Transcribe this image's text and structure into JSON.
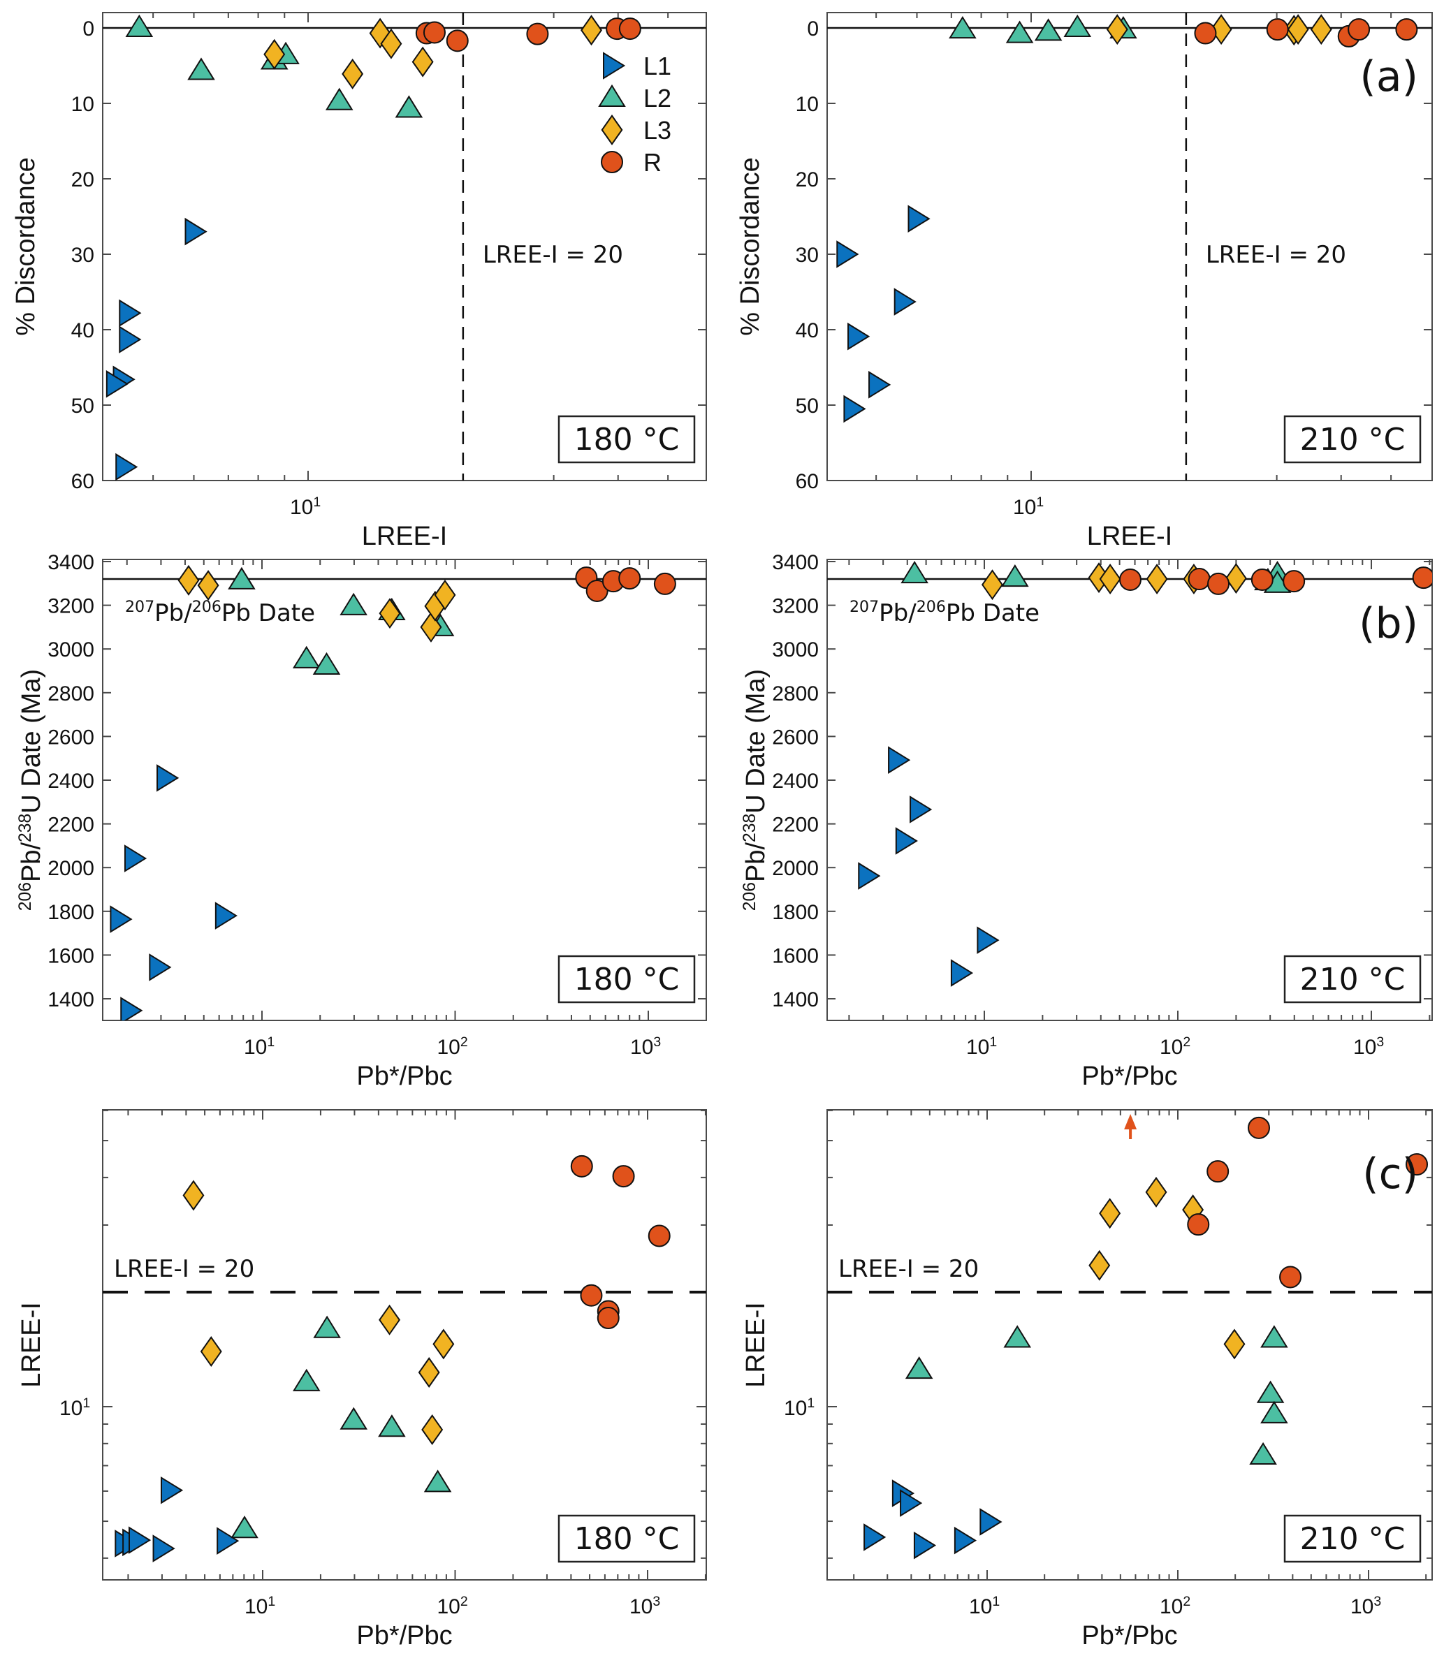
{
  "series_styles": {
    "L1": {
      "label": "L1",
      "marker": "triangle-right",
      "color": "#0b72bf"
    },
    "L2": {
      "label": "L2",
      "marker": "triangle-up",
      "color": "#4cbfa2"
    },
    "L3": {
      "label": "L3",
      "marker": "diamond",
      "color": "#f1b322"
    },
    "R": {
      "label": "R",
      "marker": "circle",
      "color": "#e0521b"
    }
  },
  "chart_data": [
    {
      "id": "a-180",
      "type": "scatter",
      "panel_label": "",
      "temperature_label": "180 °C",
      "xlabel": "LREE-I",
      "ylabel": "% Discordance",
      "xscale": "log",
      "xlim": [
        4,
        60
      ],
      "ylim": [
        60,
        0
      ],
      "y_reversed": true,
      "xticks_major": [
        {
          "value": 10,
          "label": "10",
          "exp": "1"
        }
      ],
      "yticks": [
        0,
        10,
        20,
        30,
        40,
        50,
        60
      ],
      "hline": {
        "value": 0,
        "style": "solid"
      },
      "vline": {
        "value": 20,
        "style": "dashed",
        "label": "LREE-I = 20"
      },
      "legend": {
        "placement": "top-right",
        "entries": [
          "L1",
          "L2",
          "L3",
          "R"
        ]
      },
      "series": [
        {
          "name": "L1",
          "points": [
            [
              6.0,
              27.0
            ],
            [
              4.47,
              37.8
            ],
            [
              4.47,
              41.3
            ],
            [
              4.35,
              46.6
            ],
            [
              4.22,
              47.2
            ],
            [
              4.4,
              58.2
            ]
          ]
        },
        {
          "name": "L2",
          "points": [
            [
              4.7,
              0
            ],
            [
              6.2,
              5.7
            ],
            [
              8.6,
              4.3
            ],
            [
              9.05,
              3.6
            ],
            [
              11.5,
              9.7
            ],
            [
              15.7,
              10.7
            ]
          ]
        },
        {
          "name": "L3",
          "points": [
            [
              8.6,
              3.5
            ],
            [
              12.2,
              6.1
            ],
            [
              13.8,
              0.7
            ],
            [
              14.5,
              2.1
            ],
            [
              16.7,
              4.5
            ],
            [
              35.5,
              0.3
            ]
          ]
        },
        {
          "name": "R",
          "points": [
            [
              17.0,
              0.7
            ],
            [
              17.6,
              0.6
            ],
            [
              19.5,
              1.7
            ],
            [
              27.9,
              0.8
            ],
            [
              39.8,
              0.1
            ],
            [
              42.2,
              0.1
            ]
          ]
        }
      ]
    },
    {
      "id": "a-210",
      "type": "scatter",
      "panel_label": "(a)",
      "temperature_label": "210 °C",
      "xlabel": "LREE-I",
      "ylabel": "% Discordance",
      "xscale": "log",
      "xlim": [
        4,
        60
      ],
      "ylim": [
        60,
        0
      ],
      "y_reversed": true,
      "xticks_major": [
        {
          "value": 10,
          "label": "10",
          "exp": "1"
        }
      ],
      "yticks": [
        0,
        10,
        20,
        30,
        40,
        50,
        60
      ],
      "hline": {
        "value": 0,
        "style": "solid"
      },
      "vline": {
        "value": 20,
        "style": "dashed",
        "label": "LREE-I = 20"
      },
      "series": [
        {
          "name": "L1",
          "points": [
            [
              4.36,
              30.0
            ],
            [
              6.0,
              25.3
            ],
            [
              5.64,
              36.3
            ],
            [
              4.58,
              40.9
            ],
            [
              5.03,
              47.3
            ],
            [
              4.5,
              50.5
            ]
          ]
        },
        {
          "name": "L2",
          "points": [
            [
              7.36,
              0.2
            ],
            [
              9.5,
              0.8
            ],
            [
              10.8,
              0.5
            ],
            [
              12.3,
              0
            ],
            [
              15.1,
              0.2
            ]
          ]
        },
        {
          "name": "L3",
          "points": [
            [
              14.7,
              0.2
            ],
            [
              23.4,
              0.2
            ],
            [
              32.4,
              0.3
            ],
            [
              33.0,
              0.2
            ],
            [
              36.6,
              0.2
            ]
          ]
        },
        {
          "name": "R",
          "points": [
            [
              21.8,
              0.7
            ],
            [
              30.1,
              0.2
            ],
            [
              41.4,
              1.1
            ],
            [
              43.3,
              0.2
            ],
            [
              53.6,
              0.2
            ]
          ]
        }
      ]
    },
    {
      "id": "b-180",
      "type": "scatter",
      "panel_label": "",
      "temperature_label": "180 °C",
      "xlabel": "Pb*/Pbc",
      "ylabel": "206Pb/238U Date (Ma)",
      "ylabel_parts": [
        {
          "sup": "206"
        },
        {
          "text": "Pb/"
        },
        {
          "sup": "238"
        },
        {
          "text": "U Date (Ma)"
        }
      ],
      "xscale": "log",
      "xlim": [
        1.5,
        2000
      ],
      "ylim": [
        1300,
        3410
      ],
      "xticks_major": [
        {
          "value": 10,
          "label": "10",
          "exp": "1"
        },
        {
          "value": 100,
          "label": "10",
          "exp": "2"
        },
        {
          "value": 1000,
          "label": "10",
          "exp": "3"
        }
      ],
      "yticks": [
        1400,
        1600,
        1800,
        2000,
        2200,
        2400,
        2600,
        2800,
        3000,
        3200,
        3400
      ],
      "hline": {
        "value": 3320,
        "style": "solid",
        "label_parts": [
          {
            "sup": "207"
          },
          {
            "text": "Pb/"
          },
          {
            "sup": "206"
          },
          {
            "text": "Pb Date"
          }
        ]
      },
      "series": [
        {
          "name": "L1",
          "points": [
            [
              3.17,
              2410
            ],
            [
              2.16,
              2042
            ],
            [
              1.82,
              1764
            ],
            [
              6.37,
              1780
            ],
            [
              2.9,
              1544
            ],
            [
              2.06,
              1346
            ]
          ]
        },
        {
          "name": "L2",
          "points": [
            [
              7.85,
              3314
            ],
            [
              17.0,
              2953
            ],
            [
              21.6,
              2924
            ],
            [
              29.8,
              3196
            ],
            [
              47.0,
              3173
            ],
            [
              84,
              3100
            ]
          ]
        },
        {
          "name": "L3",
          "points": [
            [
              4.17,
              3314
            ],
            [
              5.27,
              3291
            ],
            [
              45.9,
              3163
            ],
            [
              75,
              3100
            ],
            [
              78.8,
              3196
            ],
            [
              88.6,
              3247
            ]
          ]
        },
        {
          "name": "R",
          "points": [
            [
              478,
              3326
            ],
            [
              543,
              3266
            ],
            [
              659,
              3310
            ],
            [
              800,
              3323
            ],
            [
              1220,
              3298
            ]
          ]
        }
      ]
    },
    {
      "id": "b-210",
      "type": "scatter",
      "panel_label": "(b)",
      "temperature_label": "210 °C",
      "xlabel": "Pb*/Pbc",
      "ylabel": "206Pb/238U Date (Ma)",
      "ylabel_parts": [
        {
          "sup": "206"
        },
        {
          "text": "Pb/"
        },
        {
          "sup": "238"
        },
        {
          "text": "U Date (Ma)"
        }
      ],
      "xscale": "log",
      "xlim": [
        1.5,
        2000
      ],
      "ylim": [
        1300,
        3410
      ],
      "xticks_major": [
        {
          "value": 10,
          "label": "10",
          "exp": "1"
        },
        {
          "value": 100,
          "label": "10",
          "exp": "2"
        },
        {
          "value": 1000,
          "label": "10",
          "exp": "3"
        }
      ],
      "yticks": [
        1400,
        1600,
        1800,
        2000,
        2200,
        2400,
        2600,
        2800,
        3000,
        3200,
        3400
      ],
      "hline": {
        "value": 3320,
        "style": "solid",
        "label_parts": [
          {
            "sup": "207"
          },
          {
            "text": "Pb/"
          },
          {
            "sup": "206"
          },
          {
            "text": "Pb Date"
          }
        ]
      },
      "series": [
        {
          "name": "L1",
          "points": [
            [
              3.54,
              2492
            ],
            [
              4.58,
              2266
            ],
            [
              3.87,
              2122
            ],
            [
              2.48,
              1962
            ],
            [
              10.2,
              1668
            ],
            [
              7.47,
              1518
            ]
          ]
        },
        {
          "name": "L2",
          "points": [
            [
              4.36,
              3342
            ],
            [
              14.4,
              3326
            ],
            [
              292,
              3310
            ],
            [
              327,
              3342
            ],
            [
              327,
              3298
            ]
          ]
        },
        {
          "name": "L3",
          "points": [
            [
              11.0,
              3294
            ],
            [
              39.1,
              3326
            ],
            [
              44.7,
              3320
            ],
            [
              78,
              3320
            ],
            [
              121,
              3320
            ],
            [
              200,
              3323
            ]
          ]
        },
        {
          "name": "R",
          "points": [
            [
              56.8,
              3317
            ],
            [
              129,
              3320
            ],
            [
              162,
              3298
            ],
            [
              273,
              3317
            ],
            [
              398,
              3310
            ],
            [
              1860,
              3326
            ]
          ]
        }
      ]
    },
    {
      "id": "c-180",
      "type": "scatter",
      "panel_label": "",
      "temperature_label": "180 °C",
      "xlabel": "Pb*/Pbc",
      "ylabel": "LREE-I",
      "xscale": "log",
      "yscale": "log",
      "xlim": [
        1.5,
        2000
      ],
      "ylim": [
        3.5,
        60
      ],
      "xticks_major": [
        {
          "value": 10,
          "label": "10",
          "exp": "1"
        },
        {
          "value": 100,
          "label": "10",
          "exp": "2"
        },
        {
          "value": 1000,
          "label": "10",
          "exp": "3"
        }
      ],
      "yticks_major": [
        {
          "value": 10,
          "label": "10",
          "exp": "1"
        }
      ],
      "hline": {
        "value": 20,
        "style": "dashed",
        "label": "LREE-I = 20"
      },
      "series": [
        {
          "name": "L1",
          "points": [
            [
              3.29,
              6.03
            ],
            [
              1.9,
              4.37
            ],
            [
              2.08,
              4.4
            ],
            [
              2.24,
              4.46
            ],
            [
              2.99,
              4.24
            ],
            [
              6.43,
              4.44
            ]
          ]
        },
        {
          "name": "L2",
          "points": [
            [
              21.6,
              16.0
            ],
            [
              16.9,
              11.6
            ],
            [
              29.7,
              9.2
            ],
            [
              46.9,
              8.8
            ],
            [
              81.2,
              6.3
            ],
            [
              8.05,
              4.77
            ]
          ]
        },
        {
          "name": "L3",
          "points": [
            [
              4.37,
              35.9
            ],
            [
              5.4,
              13.96
            ],
            [
              45.6,
              16.9
            ],
            [
              73.2,
              12.3
            ],
            [
              87,
              14.6
            ],
            [
              76.0,
              8.7
            ]
          ]
        },
        {
          "name": "R",
          "points": [
            [
              455,
              42.8
            ],
            [
              750,
              40.3
            ],
            [
              1150,
              28.1
            ],
            [
              510,
              19.6
            ],
            [
              625,
              17.8
            ],
            [
              625,
              17.1
            ]
          ]
        }
      ]
    },
    {
      "id": "c-210",
      "type": "scatter",
      "panel_label": "(c)",
      "temperature_label": "210 °C",
      "xlabel": "Pb*/Pbc",
      "ylabel": "LREE-I",
      "xscale": "log",
      "yscale": "log",
      "xlim": [
        1.5,
        2000
      ],
      "ylim": [
        3.5,
        60
      ],
      "xticks_major": [
        {
          "value": 10,
          "label": "10",
          "exp": "1"
        },
        {
          "value": 100,
          "label": "10",
          "exp": "2"
        },
        {
          "value": 1000,
          "label": "10",
          "exp": "3"
        }
      ],
      "yticks_major": [
        {
          "value": 10,
          "label": "10",
          "exp": "1"
        }
      ],
      "hline": {
        "value": 20,
        "style": "dashed",
        "label": "LREE-I = 20"
      },
      "offscale_arrow": {
        "series": "R",
        "x": 56.4,
        "direction": "up"
      },
      "series": [
        {
          "name": "L1",
          "points": [
            [
              3.54,
              5.92
            ],
            [
              3.89,
              5.58
            ],
            [
              10.2,
              4.98
            ],
            [
              2.51,
              4.54
            ],
            [
              4.6,
              4.32
            ],
            [
              7.5,
              4.45
            ]
          ]
        },
        {
          "name": "L2",
          "points": [
            [
              14.4,
              15.1
            ],
            [
              4.4,
              12.5
            ],
            [
              320,
              15.1
            ],
            [
              306,
              10.8
            ],
            [
              320,
              9.55
            ],
            [
              280,
              7.44
            ]
          ]
        },
        {
          "name": "L3",
          "points": [
            [
              77,
              36.6
            ],
            [
              44,
              32.2
            ],
            [
              120,
              32.9
            ],
            [
              38.8,
              23.5
            ],
            [
              198,
              14.6
            ]
          ]
        },
        {
          "name": "R",
          "points": [
            [
              266,
              54.0
            ],
            [
              162,
              41.5
            ],
            [
              128,
              30.1
            ],
            [
              389,
              21.9
            ],
            [
              1790,
              43.3
            ]
          ]
        }
      ]
    }
  ]
}
